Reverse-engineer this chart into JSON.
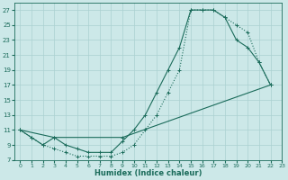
{
  "xlabel": "Humidex (Indice chaleur)",
  "bg_color": "#cce8e8",
  "grid_color": "#aad0d0",
  "line_color": "#1a6b5a",
  "xlim": [
    -0.5,
    23
  ],
  "ylim": [
    7,
    28
  ],
  "xticks": [
    0,
    1,
    2,
    3,
    4,
    5,
    6,
    7,
    8,
    9,
    10,
    11,
    12,
    13,
    14,
    15,
    16,
    17,
    18,
    19,
    20,
    21,
    22,
    23
  ],
  "yticks": [
    7,
    9,
    11,
    13,
    15,
    17,
    19,
    21,
    23,
    25,
    27
  ],
  "line1_x": [
    0,
    1,
    2,
    3,
    4,
    5,
    6,
    7,
    8,
    9,
    10,
    11,
    12,
    13,
    14,
    15,
    16,
    17,
    18,
    19,
    20,
    21,
    22
  ],
  "line1_y": [
    11,
    10,
    9,
    8.5,
    8,
    7.5,
    7.5,
    7.5,
    7.5,
    8,
    9,
    11,
    13,
    16,
    19,
    27,
    27,
    27,
    26,
    25,
    24,
    20,
    17
  ],
  "line2_x": [
    0,
    3,
    9,
    22
  ],
  "line2_y": [
    11,
    10,
    10,
    17
  ],
  "line3_x": [
    0,
    1,
    2,
    3,
    4,
    5,
    6,
    7,
    8,
    9,
    10,
    11,
    12,
    13,
    14,
    15,
    16,
    17,
    18,
    19,
    20,
    21,
    22
  ],
  "line3_y": [
    11,
    10,
    9,
    10,
    9,
    8.5,
    8,
    8,
    8,
    9.5,
    11,
    13,
    16,
    19,
    22,
    27,
    27,
    27,
    26,
    23,
    22,
    20,
    17
  ]
}
